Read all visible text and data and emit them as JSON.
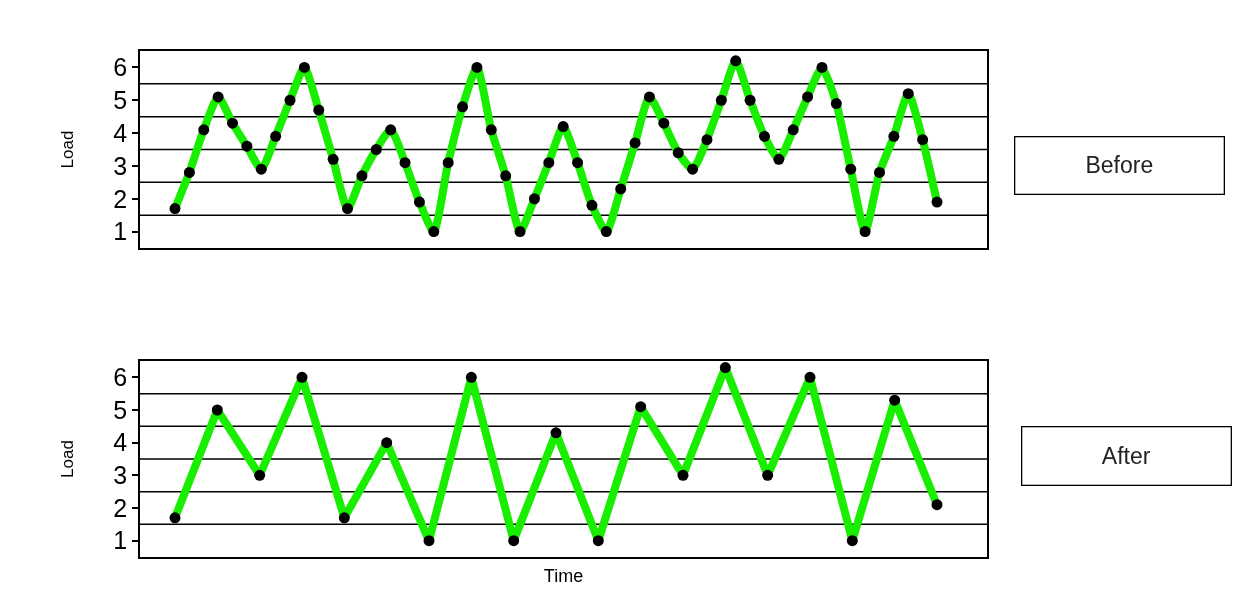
{
  "chart_data": [
    {
      "type": "line",
      "ylabel": "Load",
      "annotations": [
        "Before"
      ],
      "tick_labels": "y",
      "marker": "circle",
      "line_style": "solid",
      "categories": [
        null,
        null,
        null,
        null,
        null,
        null,
        null,
        null,
        null,
        null,
        null,
        null,
        null,
        null,
        null,
        null,
        null,
        null,
        null,
        null,
        null,
        null,
        null,
        null,
        null,
        null,
        null,
        null,
        null,
        null,
        null,
        null,
        null,
        null,
        null,
        null,
        null,
        null,
        null,
        null,
        null,
        null,
        null,
        null,
        null,
        null,
        null,
        null,
        null,
        null,
        null,
        null,
        null,
        null
      ],
      "series": [
        {
          "color": "#1aee00",
          "values": [
            1.7,
            2.8,
            4.1,
            5.1,
            4.3,
            3.6,
            2.9,
            3.9,
            5.0,
            6.0,
            4.7,
            3.2,
            1.7,
            2.7,
            3.5,
            4.1,
            3.1,
            1.9,
            1.0,
            3.1,
            4.8,
            6.0,
            4.1,
            2.7,
            1.0,
            2.0,
            3.1,
            4.2,
            3.1,
            1.8,
            1.0,
            2.3,
            3.7,
            5.1,
            4.3,
            3.4,
            2.9,
            3.8,
            5.0,
            6.2,
            5.0,
            3.9,
            3.2,
            4.1,
            5.1,
            6.0,
            4.9,
            2.9,
            1.0,
            2.8,
            3.9,
            5.2,
            3.8,
            1.9
          ]
        }
      ],
      "ylim": [
        0.5,
        6.5
      ],
      "yticks": [
        1,
        2,
        3,
        4,
        5,
        6
      ],
      "ref_lines": [
        {
          "axis": "y",
          "value": 1.5,
          "color": "#000000"
        },
        {
          "axis": "y",
          "value": 2.5,
          "color": "#000000"
        },
        {
          "axis": "y",
          "value": 3.5,
          "color": "#000000"
        },
        {
          "axis": "y",
          "value": 4.5,
          "color": "#000000"
        },
        {
          "axis": "y",
          "value": 5.5,
          "color": "#000000"
        }
      ]
    },
    {
      "type": "line",
      "ylabel": "Load",
      "xlabel": "Time",
      "annotations": [
        "After"
      ],
      "tick_labels": "y",
      "marker": "circle",
      "line_style": "solid",
      "categories": [
        null,
        null,
        null,
        null,
        null,
        null,
        null,
        null,
        null,
        null,
        null,
        null,
        null,
        null,
        null,
        null,
        null,
        null,
        null
      ],
      "series": [
        {
          "color": "#1aee00",
          "values": [
            1.7,
            5.0,
            3.0,
            6.0,
            1.7,
            4.0,
            1.0,
            6.0,
            1.0,
            4.3,
            1.0,
            5.1,
            3.0,
            6.3,
            3.0,
            6.0,
            1.0,
            5.3,
            2.1
          ]
        }
      ],
      "ylim": [
        0.5,
        6.5
      ],
      "yticks": [
        1,
        2,
        3,
        4,
        5,
        6
      ],
      "ref_lines": [
        {
          "axis": "y",
          "value": 1.5,
          "color": "#000000"
        },
        {
          "axis": "y",
          "value": 2.5,
          "color": "#000000"
        },
        {
          "axis": "y",
          "value": 3.5,
          "color": "#000000"
        },
        {
          "axis": "y",
          "value": 4.5,
          "color": "#000000"
        },
        {
          "axis": "y",
          "value": 5.5,
          "color": "#000000"
        }
      ]
    }
  ]
}
